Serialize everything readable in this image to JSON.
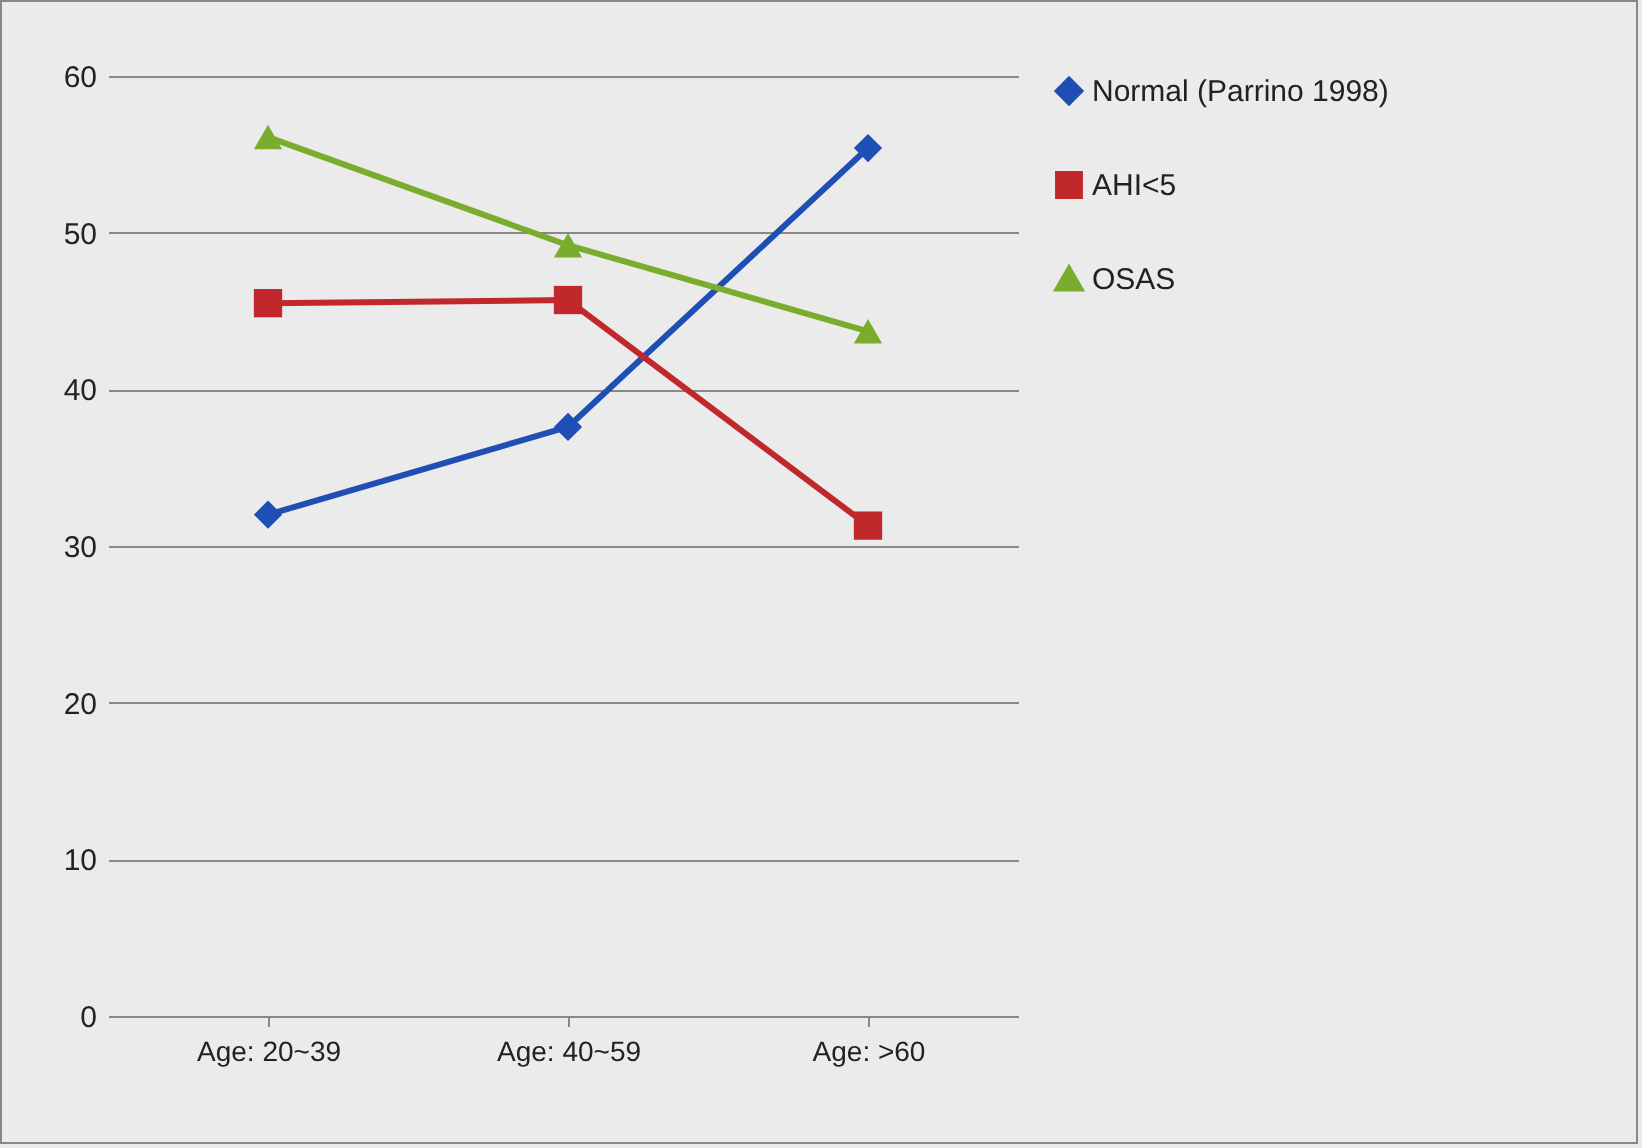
{
  "chart_data": {
    "type": "line",
    "categories": [
      "Age: 20~39",
      "Age: 40~59",
      "Age: >60"
    ],
    "series": [
      {
        "name": "Normal (Parrino 1998)",
        "color": "#1f4fb4",
        "marker": "diamond",
        "values": [
          32.0,
          37.6,
          55.4
        ]
      },
      {
        "name": "AHI<5",
        "color": "#c0282c",
        "marker": "square",
        "values": [
          45.5,
          45.7,
          31.3
        ]
      },
      {
        "name": "OSAS",
        "color": "#7aac2e",
        "marker": "triangle",
        "values": [
          56.1,
          49.2,
          43.7
        ]
      }
    ],
    "ylim": [
      0,
      60
    ],
    "yticks": [
      0,
      10,
      20,
      30,
      40,
      50,
      60
    ],
    "grid": "y",
    "legend": "right",
    "line_style": "solid"
  }
}
